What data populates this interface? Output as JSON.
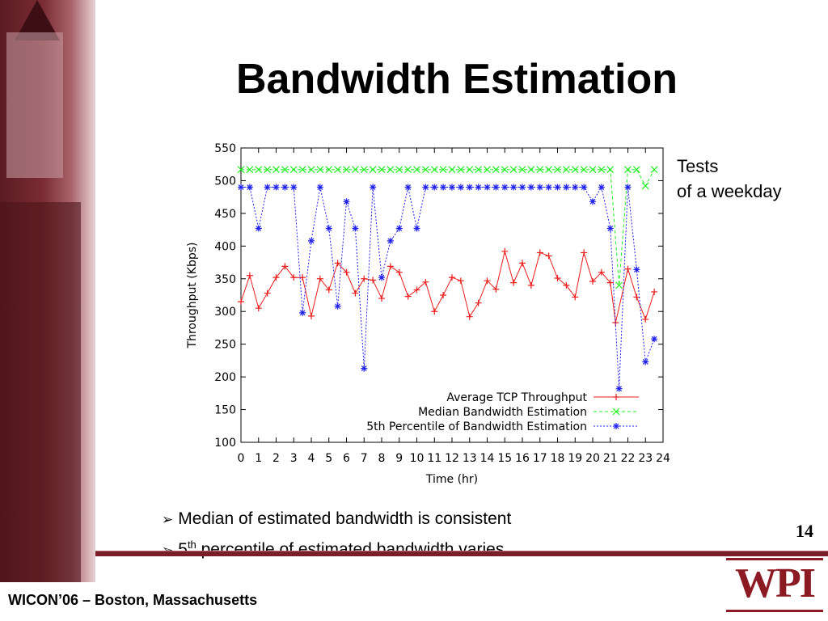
{
  "slide": {
    "title": "Bandwidth Estimation",
    "side_note": [
      "Tests",
      "of a weekday"
    ],
    "bullets": [
      {
        "text": "Median of estimated bandwidth is consistent"
      },
      {
        "prefix": "5",
        "sup": "th",
        "text": " percentile of estimated bandwidth varies."
      }
    ],
    "page_number": "14",
    "footer": "WICON’06 – Boston, Massachusetts",
    "logo_text": "WPI",
    "colors": {
      "accent": "#7a1f27",
      "logo": "#8b1a22"
    }
  },
  "chart_data": {
    "type": "line",
    "xlabel": "Time (hr)",
    "ylabel": "Throughput (Kbps)",
    "xlim": [
      0,
      24
    ],
    "ylim": [
      100,
      550
    ],
    "xticks": [
      0,
      1,
      2,
      3,
      4,
      5,
      6,
      7,
      8,
      9,
      10,
      11,
      12,
      13,
      14,
      15,
      16,
      17,
      18,
      19,
      20,
      21,
      22,
      23,
      24
    ],
    "yticks": [
      100,
      150,
      200,
      250,
      300,
      350,
      400,
      450,
      500,
      550
    ],
    "grid": false,
    "legend_position": "bottom-right",
    "series": [
      {
        "name": "Average TCP Throughput",
        "color": "#ee1c1c",
        "marker": "plus",
        "points": [
          [
            0,
            315
          ],
          [
            0.5,
            355
          ],
          [
            1,
            305
          ],
          [
            1.5,
            328
          ],
          [
            2,
            352
          ],
          [
            2.5,
            369
          ],
          [
            3,
            352
          ],
          [
            3.5,
            352
          ],
          [
            4,
            293
          ],
          [
            4.5,
            350
          ],
          [
            5,
            333
          ],
          [
            5.5,
            374
          ],
          [
            6,
            360
          ],
          [
            6.5,
            328
          ],
          [
            7,
            350
          ],
          [
            7.5,
            348
          ],
          [
            8,
            320
          ],
          [
            8.5,
            369
          ],
          [
            9,
            360
          ],
          [
            9.5,
            323
          ],
          [
            10,
            333
          ],
          [
            10.5,
            345
          ],
          [
            11,
            300
          ],
          [
            11.5,
            325
          ],
          [
            12,
            352
          ],
          [
            12.5,
            347
          ],
          [
            13,
            292
          ],
          [
            13.5,
            313
          ],
          [
            14,
            347
          ],
          [
            14.5,
            334
          ],
          [
            15,
            392
          ],
          [
            15.5,
            344
          ],
          [
            16,
            374
          ],
          [
            16.5,
            340
          ],
          [
            17,
            390
          ],
          [
            17.5,
            385
          ],
          [
            18,
            351
          ],
          [
            18.5,
            340
          ],
          [
            19,
            322
          ],
          [
            19.5,
            390
          ],
          [
            20,
            346
          ],
          [
            20.5,
            360
          ],
          [
            21,
            344
          ],
          [
            21.3,
            283
          ],
          [
            22,
            365
          ],
          [
            22.5,
            322
          ],
          [
            23,
            288
          ],
          [
            23.5,
            330
          ]
        ]
      },
      {
        "name": "Median Bandwidth Estimation",
        "color": "#22ee22",
        "marker": "x",
        "points": [
          [
            0,
            517
          ],
          [
            0.5,
            517
          ],
          [
            1,
            517
          ],
          [
            1.5,
            517
          ],
          [
            2,
            517
          ],
          [
            2.5,
            517
          ],
          [
            3,
            517
          ],
          [
            3.5,
            517
          ],
          [
            4,
            517
          ],
          [
            4.5,
            517
          ],
          [
            5,
            517
          ],
          [
            5.5,
            517
          ],
          [
            6,
            517
          ],
          [
            6.5,
            517
          ],
          [
            7,
            517
          ],
          [
            7.5,
            517
          ],
          [
            8,
            517
          ],
          [
            8.5,
            517
          ],
          [
            9,
            517
          ],
          [
            9.5,
            517
          ],
          [
            10,
            517
          ],
          [
            10.5,
            517
          ],
          [
            11,
            517
          ],
          [
            11.5,
            517
          ],
          [
            12,
            517
          ],
          [
            12.5,
            517
          ],
          [
            13,
            517
          ],
          [
            13.5,
            517
          ],
          [
            14,
            517
          ],
          [
            14.5,
            517
          ],
          [
            15,
            517
          ],
          [
            15.5,
            517
          ],
          [
            16,
            517
          ],
          [
            16.5,
            517
          ],
          [
            17,
            517
          ],
          [
            17.5,
            517
          ],
          [
            18,
            517
          ],
          [
            18.5,
            517
          ],
          [
            19,
            517
          ],
          [
            19.5,
            517
          ],
          [
            20,
            517
          ],
          [
            20.5,
            517
          ],
          [
            21,
            517
          ],
          [
            21.5,
            340
          ],
          [
            22,
            517
          ],
          [
            22.5,
            517
          ],
          [
            23,
            492
          ],
          [
            23.5,
            517
          ]
        ]
      },
      {
        "name": "5th Percentile of Bandwidth Estimation",
        "color": "#2222ee",
        "marker": "star",
        "points": [
          [
            0,
            490
          ],
          [
            0.5,
            490
          ],
          [
            1,
            427
          ],
          [
            1.5,
            490
          ],
          [
            2,
            490
          ],
          [
            2.5,
            490
          ],
          [
            3,
            490
          ],
          [
            3.5,
            298
          ],
          [
            4,
            408
          ],
          [
            4.5,
            490
          ],
          [
            5,
            427
          ],
          [
            5.5,
            308
          ],
          [
            6,
            468
          ],
          [
            6.5,
            427
          ],
          [
            7,
            213
          ],
          [
            7.5,
            490
          ],
          [
            8,
            352
          ],
          [
            8.5,
            408
          ],
          [
            9,
            427
          ],
          [
            9.5,
            490
          ],
          [
            10,
            427
          ],
          [
            10.5,
            490
          ],
          [
            11,
            490
          ],
          [
            11.5,
            490
          ],
          [
            12,
            490
          ],
          [
            12.5,
            490
          ],
          [
            13,
            490
          ],
          [
            13.5,
            490
          ],
          [
            14,
            490
          ],
          [
            14.5,
            490
          ],
          [
            15,
            490
          ],
          [
            15.5,
            490
          ],
          [
            16,
            490
          ],
          [
            16.5,
            490
          ],
          [
            17,
            490
          ],
          [
            17.5,
            490
          ],
          [
            18,
            490
          ],
          [
            18.5,
            490
          ],
          [
            19,
            490
          ],
          [
            19.5,
            490
          ],
          [
            20,
            468
          ],
          [
            20.5,
            490
          ],
          [
            21,
            427
          ],
          [
            21.5,
            182
          ],
          [
            22,
            490
          ],
          [
            22.5,
            364
          ],
          [
            23,
            223
          ],
          [
            23.5,
            258
          ]
        ]
      }
    ]
  }
}
